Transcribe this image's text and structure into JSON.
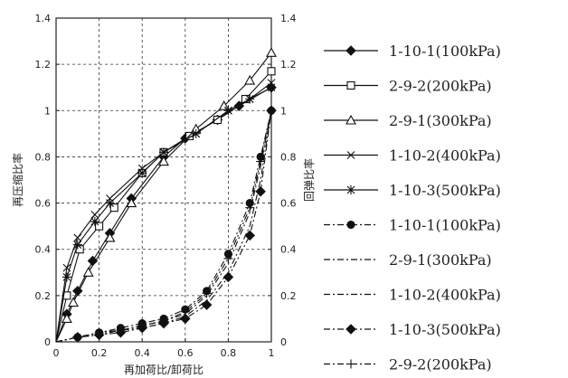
{
  "chart_data": {
    "type": "line",
    "xlabel": "再加荷比/卸荷比",
    "ylabel_left": "再压缩比率",
    "ylabel_right": "回弹比率",
    "xlim": [
      0,
      1
    ],
    "ylim": [
      0,
      1.4
    ],
    "xticks": [
      "0",
      "0.2",
      "0.4",
      "0.6",
      "0.8",
      "1"
    ],
    "yticks": [
      "0",
      "0.2",
      "0.4",
      "0.6",
      "0.8",
      "1",
      "1.2",
      "1.4"
    ],
    "grid": "dashed",
    "legend_position": "right",
    "series": [
      {
        "name": "1-10-1(100kPa)",
        "style": "solid",
        "marker": "diamond-filled",
        "x": [
          0,
          0.05,
          0.1,
          0.17,
          0.25,
          0.35,
          0.5,
          0.6,
          0.75,
          0.85,
          1.0
        ],
        "y": [
          0,
          0.12,
          0.22,
          0.35,
          0.47,
          0.62,
          0.8,
          0.88,
          0.96,
          1.02,
          1.1
        ]
      },
      {
        "name": "2-9-2(200kPa)",
        "style": "solid",
        "marker": "square-open",
        "x": [
          0,
          0.05,
          0.11,
          0.2,
          0.27,
          0.4,
          0.5,
          0.62,
          0.75,
          0.88,
          1.0
        ],
        "y": [
          0,
          0.2,
          0.4,
          0.5,
          0.58,
          0.73,
          0.82,
          0.89,
          0.96,
          1.05,
          1.17
        ]
      },
      {
        "name": "2-9-1(300kPa)",
        "style": "solid",
        "marker": "triangle-open",
        "x": [
          0,
          0.05,
          0.08,
          0.15,
          0.25,
          0.35,
          0.5,
          0.65,
          0.78,
          0.9,
          1.0
        ],
        "y": [
          0,
          0.1,
          0.17,
          0.3,
          0.45,
          0.6,
          0.78,
          0.92,
          1.02,
          1.13,
          1.25
        ]
      },
      {
        "name": "1-10-2(400kPa)",
        "style": "solid",
        "marker": "x",
        "x": [
          0,
          0.05,
          0.1,
          0.18,
          0.25,
          0.4,
          0.5,
          0.65,
          0.8,
          0.9,
          1.0
        ],
        "y": [
          0,
          0.32,
          0.45,
          0.55,
          0.62,
          0.75,
          0.82,
          0.9,
          1.0,
          1.05,
          1.12
        ]
      },
      {
        "name": "1-10-3(500kPa)",
        "style": "solid",
        "marker": "asterisk",
        "x": [
          0,
          0.05,
          0.1,
          0.18,
          0.25,
          0.4,
          0.5,
          0.65,
          0.8,
          0.9,
          1.0
        ],
        "y": [
          0,
          0.28,
          0.42,
          0.52,
          0.6,
          0.73,
          0.82,
          0.9,
          1.0,
          1.05,
          1.1
        ]
      },
      {
        "name": "1-10-1(100kPa)",
        "style": "dashdot",
        "marker": "circle-filled",
        "x": [
          0,
          0.1,
          0.2,
          0.3,
          0.4,
          0.5,
          0.6,
          0.7,
          0.8,
          0.9,
          0.95,
          1.0
        ],
        "y": [
          0,
          0.02,
          0.04,
          0.06,
          0.08,
          0.1,
          0.14,
          0.22,
          0.38,
          0.6,
          0.8,
          1.0
        ]
      },
      {
        "name": "2-9-1(300kPa)",
        "style": "dashdot",
        "marker": "none",
        "x": [
          0,
          0.1,
          0.2,
          0.3,
          0.4,
          0.5,
          0.6,
          0.7,
          0.8,
          0.9,
          0.95,
          1.0
        ],
        "y": [
          0,
          0.02,
          0.04,
          0.05,
          0.07,
          0.09,
          0.12,
          0.2,
          0.34,
          0.56,
          0.76,
          1.0
        ]
      },
      {
        "name": "1-10-2(400kPa)",
        "style": "dashdot",
        "marker": "none",
        "x": [
          0,
          0.1,
          0.2,
          0.3,
          0.4,
          0.5,
          0.6,
          0.7,
          0.8,
          0.9,
          0.95,
          1.0
        ],
        "y": [
          0,
          0.02,
          0.03,
          0.05,
          0.06,
          0.08,
          0.11,
          0.18,
          0.3,
          0.5,
          0.7,
          1.0
        ]
      },
      {
        "name": "1-10-3(500kPa)",
        "style": "dashdot",
        "marker": "diamond-filled",
        "x": [
          0,
          0.1,
          0.2,
          0.3,
          0.4,
          0.5,
          0.6,
          0.7,
          0.8,
          0.9,
          0.95,
          1.0
        ],
        "y": [
          0,
          0.02,
          0.03,
          0.04,
          0.06,
          0.08,
          0.1,
          0.16,
          0.28,
          0.46,
          0.65,
          1.0
        ]
      },
      {
        "name": "2-9-2(200kPa)",
        "style": "dashdot",
        "marker": "plus",
        "x": [
          0,
          0.1,
          0.2,
          0.3,
          0.4,
          0.5,
          0.6,
          0.7,
          0.8,
          0.9,
          0.95,
          1.0
        ],
        "y": [
          0,
          0.02,
          0.04,
          0.05,
          0.07,
          0.09,
          0.13,
          0.21,
          0.36,
          0.58,
          0.78,
          1.0
        ]
      }
    ]
  }
}
